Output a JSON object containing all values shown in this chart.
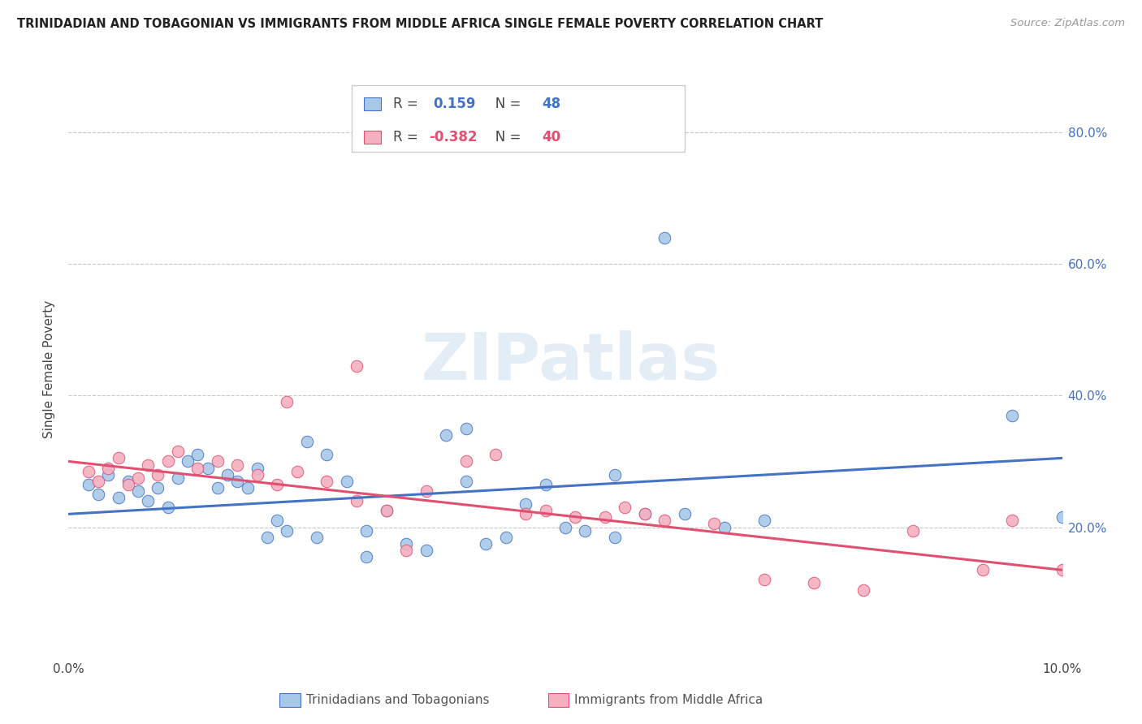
{
  "title": "TRINIDADIAN AND TOBAGONIAN VS IMMIGRANTS FROM MIDDLE AFRICA SINGLE FEMALE POVERTY CORRELATION CHART",
  "source": "Source: ZipAtlas.com",
  "ylabel": "Single Female Poverty",
  "legend_label1": "Trinidadians and Tobagonians",
  "legend_label2": "Immigrants from Middle Africa",
  "R1": 0.159,
  "N1": 48,
  "R2": -0.382,
  "N2": 40,
  "color_blue": "#a8c8e8",
  "color_pink": "#f4b0c0",
  "line_blue": "#4472c4",
  "line_pink": "#e05070",
  "blue_x": [
    0.002,
    0.003,
    0.004,
    0.005,
    0.006,
    0.007,
    0.008,
    0.009,
    0.01,
    0.011,
    0.012,
    0.013,
    0.014,
    0.015,
    0.016,
    0.017,
    0.018,
    0.019,
    0.02,
    0.021,
    0.022,
    0.024,
    0.026,
    0.028,
    0.03,
    0.032,
    0.034,
    0.036,
    0.038,
    0.04,
    0.042,
    0.044,
    0.046,
    0.048,
    0.05,
    0.052,
    0.055,
    0.058,
    0.062,
    0.066,
    0.04,
    0.03,
    0.025,
    0.055,
    0.07,
    0.06,
    0.095,
    0.1
  ],
  "blue_y": [
    0.265,
    0.25,
    0.28,
    0.245,
    0.27,
    0.255,
    0.24,
    0.26,
    0.23,
    0.275,
    0.3,
    0.31,
    0.29,
    0.26,
    0.28,
    0.27,
    0.26,
    0.29,
    0.185,
    0.21,
    0.195,
    0.33,
    0.31,
    0.27,
    0.195,
    0.225,
    0.175,
    0.165,
    0.34,
    0.27,
    0.175,
    0.185,
    0.235,
    0.265,
    0.2,
    0.195,
    0.185,
    0.22,
    0.22,
    0.2,
    0.35,
    0.155,
    0.185,
    0.28,
    0.21,
    0.64,
    0.37,
    0.215
  ],
  "pink_x": [
    0.002,
    0.003,
    0.004,
    0.005,
    0.006,
    0.007,
    0.008,
    0.009,
    0.01,
    0.011,
    0.013,
    0.015,
    0.017,
    0.019,
    0.021,
    0.023,
    0.026,
    0.029,
    0.032,
    0.036,
    0.029,
    0.04,
    0.034,
    0.043,
    0.048,
    0.051,
    0.054,
    0.056,
    0.058,
    0.065,
    0.07,
    0.075,
    0.08,
    0.085,
    0.092,
    0.1,
    0.022,
    0.046,
    0.06,
    0.095
  ],
  "pink_y": [
    0.285,
    0.27,
    0.29,
    0.305,
    0.265,
    0.275,
    0.295,
    0.28,
    0.3,
    0.315,
    0.29,
    0.3,
    0.295,
    0.28,
    0.265,
    0.285,
    0.27,
    0.24,
    0.225,
    0.255,
    0.445,
    0.3,
    0.165,
    0.31,
    0.225,
    0.215,
    0.215,
    0.23,
    0.22,
    0.205,
    0.12,
    0.115,
    0.105,
    0.195,
    0.135,
    0.135,
    0.39,
    0.22,
    0.21,
    0.21
  ],
  "xlim": [
    0,
    0.1
  ],
  "ylim": [
    0,
    0.88
  ],
  "ytick_values": [
    0.2,
    0.4,
    0.6,
    0.8
  ]
}
